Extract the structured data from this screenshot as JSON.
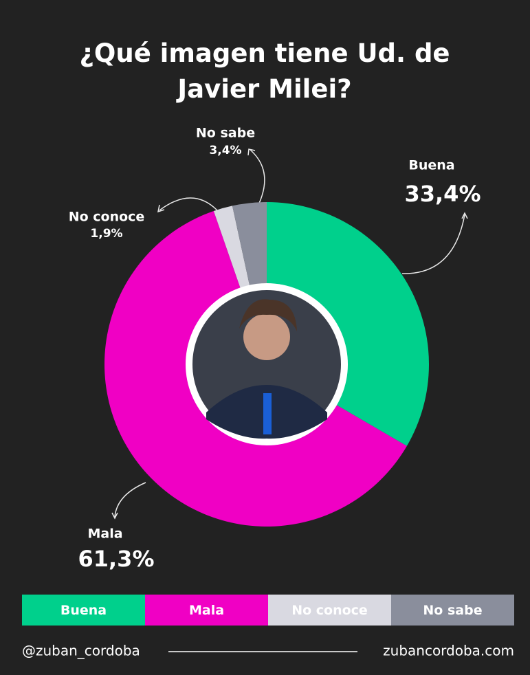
{
  "chart_data": {
    "type": "donut",
    "title": "¿Qué imagen tiene Ud. de Javier Milei?",
    "categories": [
      "Buena",
      "Mala",
      "No conoce",
      "No sabe"
    ],
    "values": [
      33.4,
      61.3,
      1.9,
      3.4
    ],
    "value_labels": [
      "33,4%",
      "61,3%",
      "1,9%",
      "3,4%"
    ],
    "colors": [
      "#00d08c",
      "#f000c4",
      "#d9d9e1",
      "#8a8e9c"
    ],
    "legend": "bottom",
    "footer": {
      "left": "@zuban_cordoba",
      "right": "zubancordoba.com"
    }
  }
}
